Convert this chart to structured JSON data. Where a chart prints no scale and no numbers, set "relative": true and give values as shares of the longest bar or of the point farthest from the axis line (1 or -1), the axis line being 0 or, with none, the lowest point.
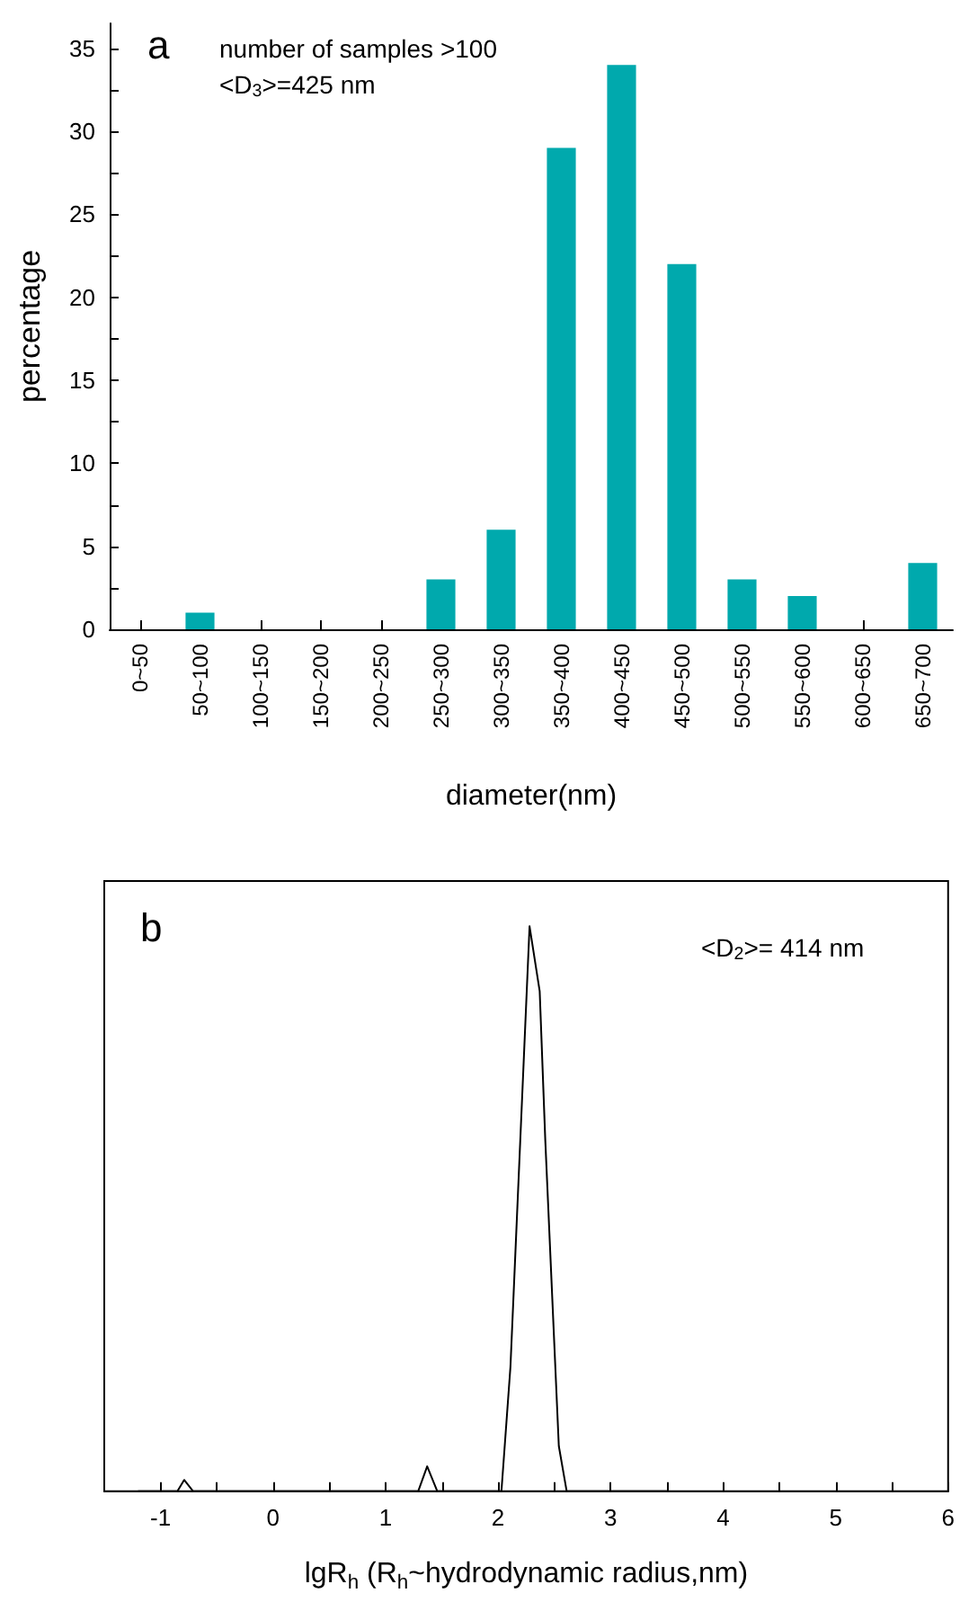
{
  "chart_data": [
    {
      "type": "bar",
      "xlabel": "diameter(nm)",
      "ylabel": "percentage",
      "annotations": [
        "a",
        "number of samples >100",
        "<D$_{3}$>=425 nm"
      ],
      "categories": [
        "0~50",
        "50~100",
        "100~150",
        "150~200",
        "200~250",
        "250~300",
        "300~350",
        "350~400",
        "400~450",
        "450~500",
        "500~550",
        "550~600",
        "600~650",
        "650~700"
      ],
      "values": [
        0,
        1,
        0,
        0,
        0,
        3,
        6,
        29,
        34,
        22,
        3,
        2,
        0,
        4
      ],
      "color": "#00a9ad",
      "ylim": [
        0,
        36.5
      ],
      "yticks": [
        0,
        {
          "value": 2.5,
          "label": null
        },
        5,
        {
          "value": 7.5,
          "label": null
        },
        10,
        {
          "value": 12.5,
          "label": null
        },
        15,
        {
          "value": 17.5,
          "label": null
        },
        20,
        {
          "value": 22.5,
          "label": null
        },
        25,
        {
          "value": 27.5,
          "label": null
        },
        30,
        {
          "value": 32.5,
          "label": null
        },
        35
      ]
    },
    {
      "type": "line",
      "xlabel": "lgR$_{h}$ (R$_{h}$~hydrodynamic radius,nm)",
      "annotations": [
        "b",
        "<D$_{2}$>= 414 nm"
      ],
      "x": [
        -1.2,
        -0.85,
        -0.79,
        -0.71,
        1.29,
        1.37,
        1.46,
        2.03,
        2.11,
        2.28,
        2.37,
        2.42,
        2.54,
        2.61,
        3.5
      ],
      "values": [
        0,
        0,
        0.02,
        0,
        0,
        0.044,
        0,
        0,
        0.22,
        1,
        0.885,
        0.62,
        0.08,
        0,
        0
      ],
      "color": "#000000",
      "relative": true,
      "marker": "none",
      "xlim": [
        -1.5,
        6
      ],
      "xticks": [
        -1,
        {
          "value": -0.5,
          "label": null
        },
        0,
        {
          "value": 0.5,
          "label": null
        },
        1,
        {
          "value": 1.5,
          "label": null
        },
        2,
        {
          "value": 2.5,
          "label": null
        },
        3,
        {
          "value": 3.5,
          "label": null
        },
        4,
        {
          "value": 4.5,
          "label": null
        },
        5,
        {
          "value": 5.5,
          "label": null
        },
        6
      ]
    }
  ]
}
